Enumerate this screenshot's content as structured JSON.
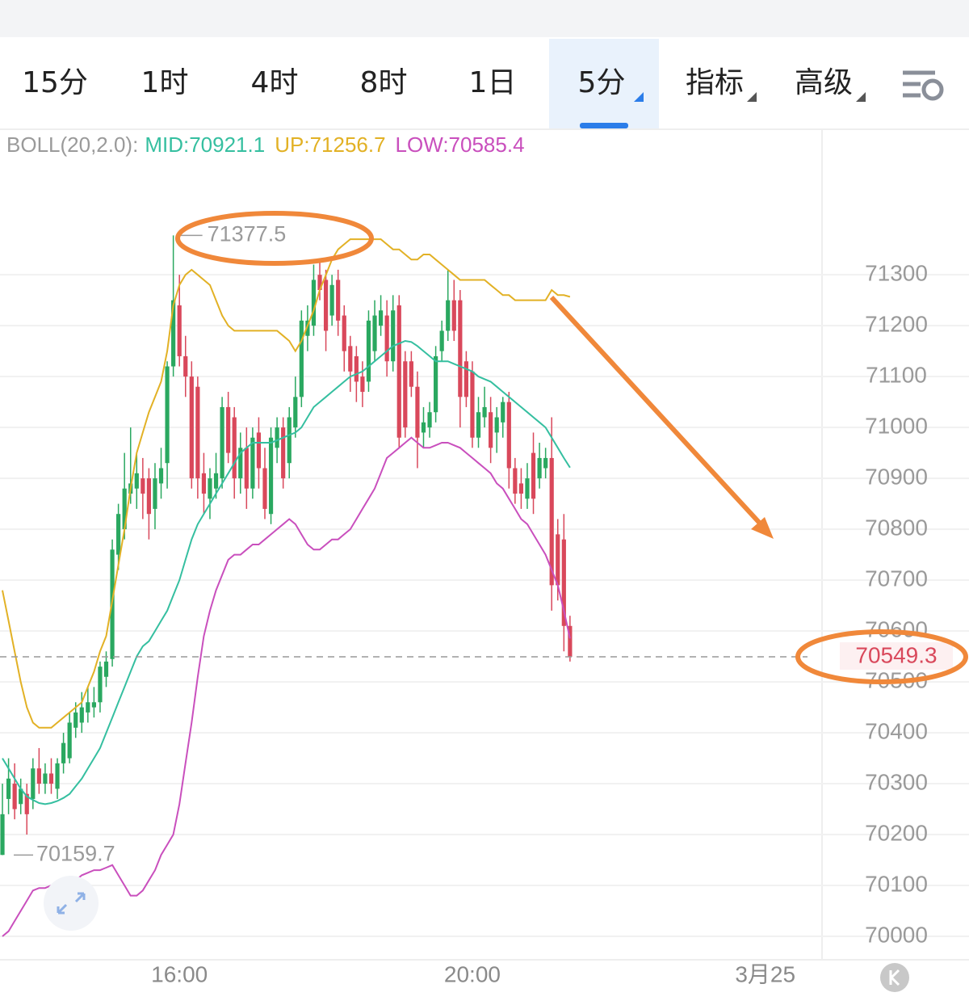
{
  "tabs": {
    "items": [
      "15分",
      "1时",
      "4时",
      "8时",
      "1日",
      "5分",
      "指标",
      "高级"
    ],
    "active": 5
  },
  "chart_data": {
    "type": "candlestick",
    "indicator": "BOLL(20,2.0):",
    "separator": ":",
    "up_color": "#2aa860",
    "down_color": "#d9485b",
    "open": [
      70160,
      70270,
      70300,
      70260,
      70280,
      70270,
      70330,
      70300,
      70320,
      70290,
      70340,
      70350,
      70410,
      70420,
      70440,
      70450,
      70460,
      70510,
      70545,
      70750,
      70800,
      70870,
      70880,
      70900,
      70900,
      70840,
      70890,
      70930,
      71120,
      71240,
      71140,
      71100,
      71080,
      70910,
      70860,
      70880,
      70900,
      71040,
      71020,
      70900,
      70960,
      70880,
      70990,
      70920,
      70830,
      70960,
      71000,
      70930,
      71000,
      71060,
      71180,
      71200,
      71300,
      71290,
      71220,
      71290,
      71220,
      71160,
      71140,
      71100,
      71090,
      71150,
      71200,
      71220,
      71130,
      71240,
      71130,
      71130,
      71080,
      70990,
      71000,
      71030,
      71150,
      71190,
      71250,
      71250,
      71130,
      71110,
      70980,
      71020,
      71030,
      70990,
      71010,
      71050,
      70920,
      70890,
      70860,
      70950,
      70900,
      70920,
      70940,
      70790,
      70780,
      70610
    ],
    "high": [
      70300,
      70350,
      70340,
      70310,
      70300,
      70350,
      70370,
      70340,
      70350,
      70350,
      70400,
      70440,
      70460,
      70480,
      70490,
      70490,
      70540,
      70560,
      70780,
      70850,
      70950,
      71000,
      70950,
      70940,
      70920,
      70930,
      70960,
      71130,
      71377.5,
      71300,
      71180,
      71130,
      71100,
      70950,
      70920,
      70950,
      71060,
      71070,
      71040,
      70990,
      71000,
      71000,
      71020,
      70960,
      71000,
      71020,
      71020,
      71040,
      71100,
      71230,
      71240,
      71320,
      71330,
      71310,
      71300,
      71310,
      71240,
      71180,
      71160,
      71130,
      71230,
      71250,
      71260,
      71250,
      71260,
      71260,
      71150,
      71150,
      71110,
      71040,
      71050,
      71160,
      71210,
      71310,
      71290,
      71270,
      71150,
      71130,
      71060,
      71080,
      71060,
      71040,
      71060,
      71070,
      70940,
      70920,
      70930,
      70990,
      70970,
      70960,
      71020,
      70820,
      70830,
      70630
    ],
    "low": [
      70159.7,
      70240,
      70230,
      70240,
      70200,
      70250,
      70280,
      70280,
      70280,
      70270,
      70320,
      70340,
      70390,
      70400,
      70420,
      70430,
      70440,
      70490,
      70530,
      70720,
      70780,
      70850,
      70840,
      70820,
      70780,
      70800,
      70860,
      70880,
      71100,
      71120,
      71060,
      70880,
      70860,
      70830,
      70820,
      70860,
      70880,
      70930,
      70860,
      70870,
      70840,
      70860,
      70880,
      70820,
      70810,
      70930,
      70880,
      70900,
      70980,
      71040,
      71150,
      71180,
      71250,
      71150,
      71200,
      71180,
      71110,
      71070,
      71050,
      71040,
      71070,
      71130,
      71180,
      71100,
      71110,
      70960,
      70980,
      71060,
      70920,
      70960,
      70980,
      71010,
      71130,
      71170,
      71170,
      71000,
      71040,
      70960,
      70960,
      71000,
      70930,
      70950,
      70980,
      70880,
      70850,
      70840,
      70840,
      70830,
      70880,
      70900,
      70640,
      70660,
      70560,
      70540
    ],
    "close": [
      70240,
      70310,
      70250,
      70290,
      70240,
      70330,
      70300,
      70320,
      70300,
      70340,
      70380,
      70420,
      70440,
      70450,
      70460,
      70460,
      70530,
      70540,
      70760,
      70830,
      70880,
      70890,
      70910,
      70870,
      70830,
      70900,
      70920,
      71120,
      71250,
      71140,
      71100,
      70900,
      70900,
      70870,
      70900,
      70910,
      71040,
      70950,
      70900,
      70960,
      70880,
      70980,
      70920,
      70840,
      70980,
      71000,
      70900,
      71020,
      71060,
      71210,
      71210,
      71290,
      71270,
      71190,
      71280,
      71210,
      71150,
      71110,
      71090,
      71070,
      71210,
      71220,
      71230,
      71130,
      71230,
      70980,
      71000,
      71080,
      70980,
      71010,
      71030,
      71140,
      71190,
      71250,
      71190,
      71060,
      71060,
      70980,
      71030,
      71040,
      70960,
      71020,
      71050,
      70920,
      70870,
      70870,
      70900,
      70860,
      70940,
      70940,
      70690,
      70690,
      70610,
      70549.3
    ],
    "series": [
      {
        "name": "MID",
        "color": "#35bfa0",
        "values": [
          70350,
          70330,
          70310,
          70290,
          70275,
          70268,
          70262,
          70260,
          70262,
          70266,
          70272,
          70280,
          70295,
          70310,
          70330,
          70350,
          70370,
          70400,
          70430,
          70460,
          70490,
          70520,
          70550,
          70570,
          70580,
          70600,
          70620,
          70640,
          70670,
          70700,
          70740,
          70780,
          70810,
          70830,
          70850,
          70870,
          70890,
          70910,
          70930,
          70950,
          70960,
          70970,
          70970,
          70970,
          70970,
          70975,
          70980,
          70985,
          70990,
          71000,
          71020,
          71040,
          71050,
          71060,
          71070,
          71080,
          71090,
          71100,
          71105,
          71110,
          71120,
          71130,
          71140,
          71150,
          71160,
          71165,
          71170,
          71168,
          71160,
          71150,
          71140,
          71130,
          71130,
          71130,
          71125,
          71120,
          71115,
          71110,
          71100,
          71095,
          71090,
          71080,
          71070,
          71060,
          71050,
          71040,
          71030,
          71020,
          71010,
          71000,
          70980,
          70960,
          70940,
          70921.1
        ]
      },
      {
        "name": "UP",
        "color": "#e2b125",
        "values": [
          70680,
          70620,
          70560,
          70500,
          70450,
          70420,
          70410,
          70410,
          70410,
          70420,
          70430,
          70440,
          70450,
          70460,
          70490,
          70520,
          70560,
          70590,
          70660,
          70730,
          70800,
          70880,
          70950,
          70990,
          71030,
          71060,
          71090,
          71150,
          71240,
          71280,
          71300,
          71310,
          71300,
          71290,
          71280,
          71250,
          71220,
          71200,
          71190,
          71190,
          71190,
          71190,
          71190,
          71190,
          71190,
          71190,
          71180,
          71170,
          71150,
          71170,
          71200,
          71230,
          71270,
          71300,
          71330,
          71350,
          71360,
          71370,
          71370,
          71370,
          71370,
          71370,
          71370,
          71360,
          71350,
          71350,
          71340,
          71330,
          71330,
          71340,
          71340,
          71330,
          71320,
          71310,
          71300,
          71290,
          71290,
          71290,
          71290,
          71290,
          71280,
          71270,
          71260,
          71260,
          71250,
          71250,
          71250,
          71250,
          71250,
          71250,
          71270,
          71260,
          71260,
          71256.7
        ]
      },
      {
        "name": "LOW",
        "color": "#c94fbd",
        "values": [
          70000,
          70010,
          70030,
          70050,
          70070,
          70090,
          70095,
          70095,
          70100,
          70100,
          70100,
          70100,
          70110,
          70120,
          70125,
          70130,
          70130,
          70135,
          70140,
          70120,
          70100,
          70080,
          70080,
          70090,
          70110,
          70130,
          70160,
          70180,
          70200,
          70260,
          70340,
          70420,
          70510,
          70590,
          70640,
          70680,
          70710,
          70740,
          70750,
          70750,
          70760,
          70770,
          70770,
          70780,
          70790,
          70800,
          70810,
          70820,
          70810,
          70790,
          70770,
          70760,
          70760,
          70770,
          70780,
          70780,
          70790,
          70800,
          70820,
          70840,
          70860,
          70880,
          70910,
          70940,
          70950,
          70960,
          70970,
          70980,
          70970,
          70960,
          70960,
          70965,
          70970,
          70970,
          70965,
          70960,
          70950,
          70940,
          70930,
          70920,
          70910,
          70890,
          70880,
          70860,
          70840,
          70820,
          70810,
          70790,
          70770,
          70750,
          70720,
          70690,
          70640,
          70585.4
        ]
      }
    ],
    "xlim": [
      -0.4,
      134.3
    ],
    "xticks": [
      {
        "value": 29,
        "label": "16:00"
      },
      {
        "value": 77,
        "label": "20:00"
      },
      {
        "value": 125,
        "label": "3月25"
      }
    ],
    "ylim": [
      69954,
      71586
    ],
    "yticks": [
      70000,
      70100,
      70200,
      70300,
      70400,
      70500,
      70600,
      70700,
      70800,
      70900,
      71000,
      71100,
      71200,
      71300
    ],
    "grid": true
  }
}
